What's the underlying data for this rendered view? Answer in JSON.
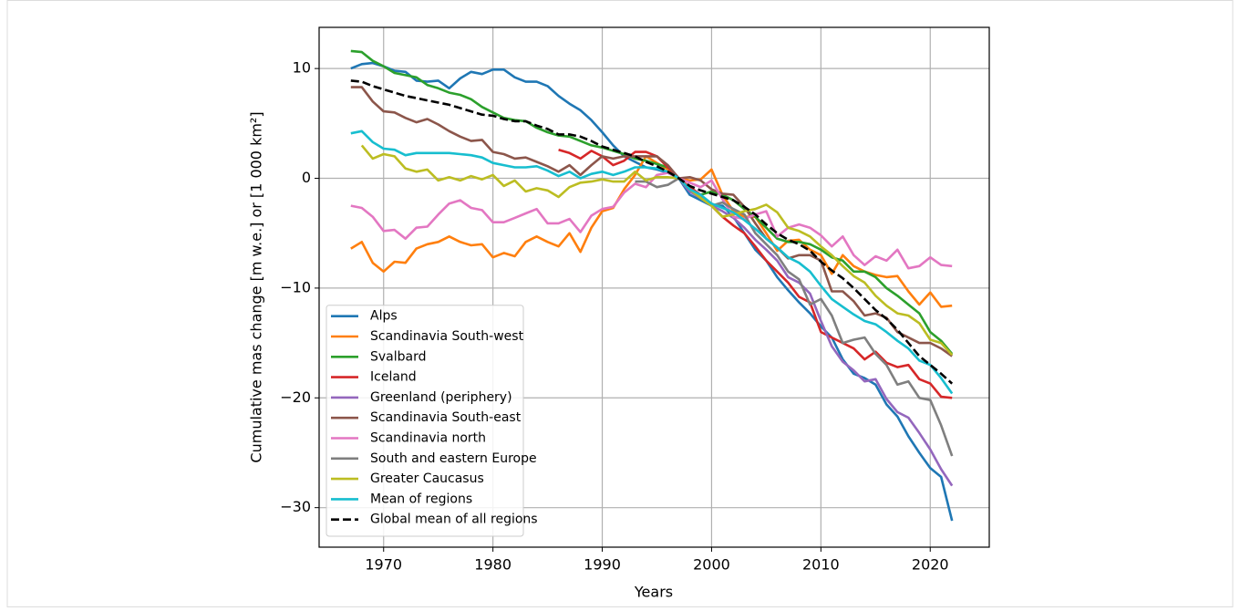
{
  "chart_data": {
    "type": "line",
    "xlabel": "Years",
    "ylabel": "Cumulative mas change [m w.e.] or [1 000 km²]",
    "x": [
      1967,
      1968,
      1969,
      1970,
      1971,
      1972,
      1973,
      1974,
      1975,
      1976,
      1977,
      1978,
      1979,
      1980,
      1981,
      1982,
      1983,
      1984,
      1985,
      1986,
      1987,
      1988,
      1989,
      1990,
      1991,
      1992,
      1993,
      1994,
      1995,
      1996,
      1997,
      1998,
      1999,
      2000,
      2001,
      2002,
      2003,
      2004,
      2005,
      2006,
      2007,
      2008,
      2009,
      2010,
      2011,
      2012,
      2013,
      2014,
      2015,
      2016,
      2017,
      2018,
      2019,
      2020,
      2021,
      2022
    ],
    "series": [
      {
        "name": "Alps",
        "color": "#1f77b4",
        "values": [
          10,
          10.4,
          10.5,
          10.2,
          9.8,
          9.7,
          8.9,
          8.8,
          8.9,
          8.2,
          9.1,
          9.7,
          9.5,
          9.9,
          9.9,
          9.2,
          8.8,
          8.8,
          8.4,
          7.5,
          6.8,
          6.2,
          5.3,
          4.2,
          3.0,
          2.0,
          1.5,
          1.0,
          0.8,
          0.5,
          0,
          -1.5,
          -2.0,
          -2.5,
          -2.5,
          -3.5,
          -5.0,
          -6.5,
          -7.5,
          -9.0,
          -10.2,
          -11.3,
          -12.3,
          -13.5,
          -14.5,
          -16.5,
          -17.8,
          -18.2,
          -18.8,
          -20.6,
          -21.7,
          -23.5,
          -25.0,
          -26.4,
          -27.2,
          -31.2
        ]
      },
      {
        "name": "Scandinavia South-west",
        "color": "#ff7f0e",
        "values": [
          -6.4,
          -5.8,
          -7.7,
          -8.5,
          -7.6,
          -7.7,
          -6.4,
          -6.0,
          -5.8,
          -5.3,
          -5.8,
          -6.1,
          -6.0,
          -7.2,
          -6.8,
          -7.1,
          -5.8,
          -5.3,
          -5.8,
          -6.2,
          -5.0,
          -6.7,
          -4.5,
          -3.0,
          -2.7,
          -1.0,
          0.3,
          2.0,
          1.4,
          0.8,
          0,
          -0.2,
          -0.1,
          0.8,
          -1.5,
          -3.0,
          -3.5,
          -3.5,
          -5.0,
          -6.6,
          -5.7,
          -5.6,
          -6.5,
          -7.0,
          -8.7,
          -7.0,
          -8.0,
          -8.5,
          -8.8,
          -9.0,
          -8.9,
          -10.3,
          -11.5,
          -10.4,
          -11.7,
          -11.6
        ]
      },
      {
        "name": "Svalbard",
        "color": "#2ca02c",
        "values": [
          11.6,
          11.5,
          10.7,
          10.2,
          9.6,
          9.4,
          9.2,
          8.5,
          8.2,
          7.8,
          7.6,
          7.2,
          6.5,
          6.0,
          5.5,
          5.3,
          5.2,
          4.6,
          4.2,
          3.9,
          3.8,
          3.4,
          3.0,
          2.8,
          2.5,
          2.2,
          1.8,
          1.6,
          1.3,
          1.0,
          0,
          -1.0,
          -1.5,
          -1.2,
          -1.5,
          -2.0,
          -2.8,
          -3.5,
          -4.5,
          -5.5,
          -5.8,
          -5.8,
          -6.0,
          -6.5,
          -7.2,
          -7.5,
          -8.5,
          -8.5,
          -9.0,
          -10.0,
          -10.7,
          -11.5,
          -12.3,
          -14.0,
          -14.8,
          -16.0
        ]
      },
      {
        "name": "Iceland",
        "color": "#d62728",
        "values": [
          null,
          null,
          null,
          null,
          null,
          null,
          null,
          null,
          null,
          null,
          null,
          null,
          null,
          null,
          null,
          null,
          null,
          null,
          null,
          2.6,
          2.3,
          1.8,
          2.5,
          2.0,
          1.2,
          1.6,
          2.4,
          2.4,
          2.0,
          1.0,
          0,
          -0.8,
          -1.5,
          -2.5,
          -3.5,
          -4.3,
          -5.0,
          -6.2,
          -7.5,
          -8.5,
          -9.5,
          -10.8,
          -11.3,
          -14.0,
          -14.5,
          -15.0,
          -15.5,
          -16.5,
          -15.8,
          -16.8,
          -17.2,
          -17.0,
          -18.3,
          -18.7,
          -19.9,
          -20.0
        ]
      },
      {
        "name": "Greenland (periphery)",
        "color": "#9467bd",
        "values": [
          null,
          null,
          null,
          null,
          null,
          null,
          null,
          null,
          null,
          null,
          null,
          null,
          null,
          null,
          null,
          null,
          null,
          null,
          null,
          null,
          null,
          null,
          null,
          null,
          null,
          null,
          null,
          null,
          null,
          null,
          0,
          -1.2,
          -1.8,
          -2.5,
          -3.0,
          -3.6,
          -4.5,
          -5.6,
          -6.5,
          -7.5,
          -9.0,
          -9.5,
          -10.5,
          -13.0,
          -15.3,
          -16.7,
          -17.5,
          -18.5,
          -18.3,
          -20.1,
          -21.3,
          -21.8,
          -23.2,
          -24.7,
          -26.5,
          -28.0
        ]
      },
      {
        "name": "Scandinavia South-east",
        "color": "#8c564b",
        "values": [
          8.3,
          8.3,
          7.0,
          6.1,
          6.0,
          5.5,
          5.1,
          5.4,
          4.9,
          4.3,
          3.8,
          3.4,
          3.5,
          2.4,
          2.2,
          1.8,
          1.9,
          1.5,
          1.1,
          0.6,
          1.2,
          0.3,
          1.2,
          2.0,
          1.8,
          2.0,
          2.0,
          2.0,
          2.0,
          1.2,
          0,
          0.1,
          -0.2,
          -1.0,
          -1.4,
          -1.5,
          -2.6,
          -4.1,
          -5.5,
          -6.3,
          -7.3,
          -7.0,
          -7.0,
          -7.5,
          -10.3,
          -10.3,
          -11.2,
          -12.5,
          -12.3,
          -12.7,
          -14.0,
          -14.5,
          -15.0,
          -15.0,
          -15.5,
          -16.2
        ]
      },
      {
        "name": "Scandinavia north",
        "color": "#e377c2",
        "values": [
          -2.5,
          -2.7,
          -3.5,
          -4.8,
          -4.7,
          -5.5,
          -4.5,
          -4.4,
          -3.3,
          -2.3,
          -2.0,
          -2.7,
          -2.9,
          -4.0,
          -4.0,
          -3.6,
          -3.2,
          -2.8,
          -4.1,
          -4.1,
          -3.7,
          -4.9,
          -3.4,
          -2.8,
          -2.6,
          -1.3,
          -0.5,
          -0.8,
          0.3,
          0.5,
          0,
          -0.4,
          -0.8,
          -0.2,
          -1.9,
          -3.5,
          -3.7,
          -3.3,
          -3.0,
          -5.3,
          -4.5,
          -4.2,
          -4.5,
          -5.2,
          -6.2,
          -5.3,
          -7.0,
          -7.9,
          -7.1,
          -7.5,
          -6.5,
          -8.2,
          -8.0,
          -7.2,
          -7.9,
          -8.0
        ]
      },
      {
        "name": "South and eastern Europe",
        "color": "#7f7f7f",
        "values": [
          null,
          null,
          null,
          null,
          null,
          null,
          null,
          null,
          null,
          null,
          null,
          null,
          null,
          null,
          null,
          null,
          null,
          null,
          null,
          null,
          null,
          null,
          null,
          null,
          null,
          null,
          -0.3,
          -0.3,
          -0.8,
          -0.6,
          0,
          -1.0,
          -1.8,
          -2.5,
          -2.2,
          -2.8,
          -3.3,
          -5.0,
          -6.0,
          -7.0,
          -8.5,
          -9.2,
          -11.5,
          -11.0,
          -12.5,
          -15.0,
          -14.7,
          -14.5,
          -16.0,
          -17.0,
          -18.8,
          -18.5,
          -20.0,
          -20.2,
          -22.5,
          -25.3
        ]
      },
      {
        "name": "Greater Caucasus",
        "color": "#bcbd22",
        "values": [
          null,
          3.0,
          1.8,
          2.2,
          2.0,
          0.9,
          0.6,
          0.8,
          -0.2,
          0.1,
          -0.2,
          0.2,
          -0.1,
          0.3,
          -0.7,
          -0.2,
          -1.2,
          -0.9,
          -1.1,
          -1.7,
          -0.8,
          -0.4,
          -0.3,
          -0.1,
          -0.3,
          -0.3,
          0.6,
          -0.2,
          0.1,
          0.1,
          0,
          -1.0,
          -1.8,
          -2.5,
          -3.5,
          -3.3,
          -3.0,
          -2.8,
          -2.4,
          -3.1,
          -4.5,
          -4.8,
          -5.3,
          -6.2,
          -7.0,
          -8.0,
          -8.9,
          -9.5,
          -10.7,
          -11.6,
          -12.3,
          -12.5,
          -13.2,
          -14.7,
          -15.0,
          -16.1
        ]
      },
      {
        "name": "Mean of regions",
        "color": "#17becf",
        "values": [
          4.1,
          4.3,
          3.3,
          2.7,
          2.6,
          2.1,
          2.3,
          2.3,
          2.3,
          2.3,
          2.2,
          2.1,
          1.9,
          1.4,
          1.2,
          1.0,
          1.0,
          1.1,
          0.7,
          0.2,
          0.6,
          0.0,
          0.4,
          0.6,
          0.3,
          0.6,
          1.0,
          1.0,
          0.9,
          0.6,
          0,
          -1.0,
          -1.5,
          -2.3,
          -2.7,
          -3.1,
          -3.8,
          -4.6,
          -5.5,
          -6.3,
          -7.2,
          -7.7,
          -8.5,
          -9.8,
          -11.0,
          -11.7,
          -12.4,
          -13.0,
          -13.3,
          -14.0,
          -14.8,
          -15.5,
          -16.6,
          -17.0,
          -18.2,
          -19.6
        ]
      },
      {
        "name": "Global mean of all regions",
        "color": "#000000",
        "dashed": true,
        "values": [
          8.9,
          8.8,
          8.4,
          8.1,
          7.8,
          7.5,
          7.3,
          7.1,
          6.9,
          6.7,
          6.4,
          6.1,
          5.8,
          5.7,
          5.4,
          5.2,
          5.2,
          4.8,
          4.5,
          4.0,
          4.0,
          3.8,
          3.4,
          2.9,
          2.6,
          2.3,
          2.0,
          1.5,
          1.1,
          0.6,
          0,
          -0.7,
          -1.1,
          -1.4,
          -1.7,
          -2.0,
          -2.6,
          -3.3,
          -4.2,
          -5.0,
          -5.6,
          -6.0,
          -6.6,
          -7.6,
          -8.4,
          -9.1,
          -10.0,
          -11.0,
          -12.0,
          -12.8,
          -13.8,
          -15.0,
          -16.2,
          -17.0,
          -17.8,
          -18.7
        ]
      }
    ],
    "xlim": [
      1964.1,
      2025.4
    ],
    "ylim": [
      -33.6,
      13.75
    ],
    "xticks": [
      1970,
      1980,
      1990,
      2000,
      2010,
      2020
    ],
    "yticks": [
      {
        "value": -30,
        "label": "−30"
      },
      {
        "value": -20,
        "label": "−20"
      },
      {
        "value": -10,
        "label": "−10"
      },
      0,
      10
    ],
    "grid": true,
    "legend": "lower left"
  }
}
